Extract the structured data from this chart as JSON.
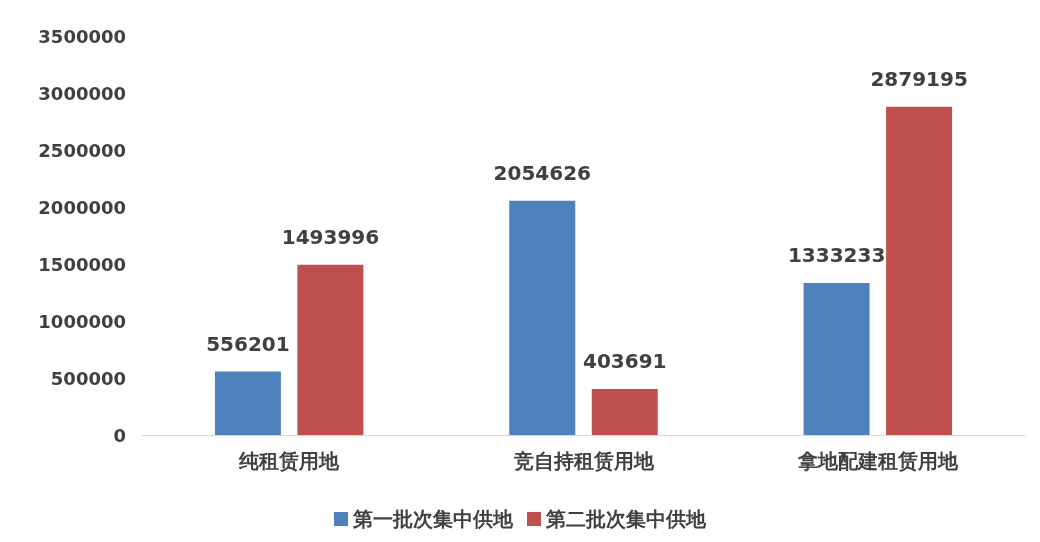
{
  "chart_data": {
    "type": "bar",
    "categories": [
      "纯租赁用地",
      "竞自持租赁用地",
      "拿地配建租赁用地"
    ],
    "series": [
      {
        "name": "第一批次集中供地",
        "color": "#4f81bd",
        "values": [
          556201,
          2054626,
          1333233
        ]
      },
      {
        "name": "第二批次集中供地",
        "color": "#c0504d",
        "values": [
          1493996,
          403691,
          2879195
        ]
      }
    ],
    "ylim": [
      0,
      3500000
    ],
    "yticks": [
      0,
      500000,
      1000000,
      1500000,
      2000000,
      2500000,
      3000000,
      3500000
    ],
    "grid": false,
    "legend": "bottom",
    "data_labels": true
  }
}
